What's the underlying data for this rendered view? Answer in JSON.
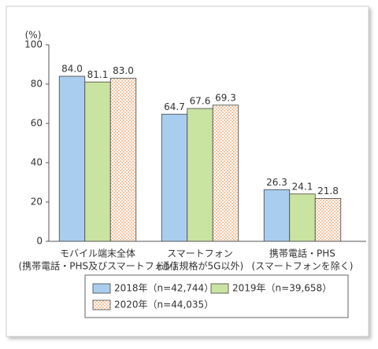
{
  "chart_data": {
    "type": "bar",
    "y_label": "(%)",
    "categories": [
      [
        "モバイル端末全体",
        "(携帯電話・PHS及びスマートフォン)"
      ],
      [
        "スマートフォン",
        "(通信規格が5G以外)"
      ],
      [
        "携帯電話・PHS",
        "(スマートフォンを除く)"
      ]
    ],
    "series": [
      {
        "name": "2018年（n=42,744）",
        "color": "#a9cdee",
        "values": [
          84.0,
          64.7,
          26.3
        ],
        "value_labels": [
          "84.0",
          "64.7",
          "26.3"
        ]
      },
      {
        "name": "2019年（n=39,658）",
        "color": "#c9e3a0",
        "values": [
          81.1,
          67.6,
          24.1
        ],
        "value_labels": [
          "81.1",
          "67.6",
          "24.1"
        ]
      },
      {
        "name": "2020年（n=44,035）",
        "color": "#f4c4a2",
        "values": [
          83.0,
          69.3,
          21.8
        ],
        "value_labels": [
          "83.0",
          "69.3",
          "21.8"
        ]
      }
    ],
    "ylim": [
      0,
      100
    ],
    "yticks": [
      0,
      20,
      40,
      60,
      80,
      100
    ],
    "grid": false
  }
}
